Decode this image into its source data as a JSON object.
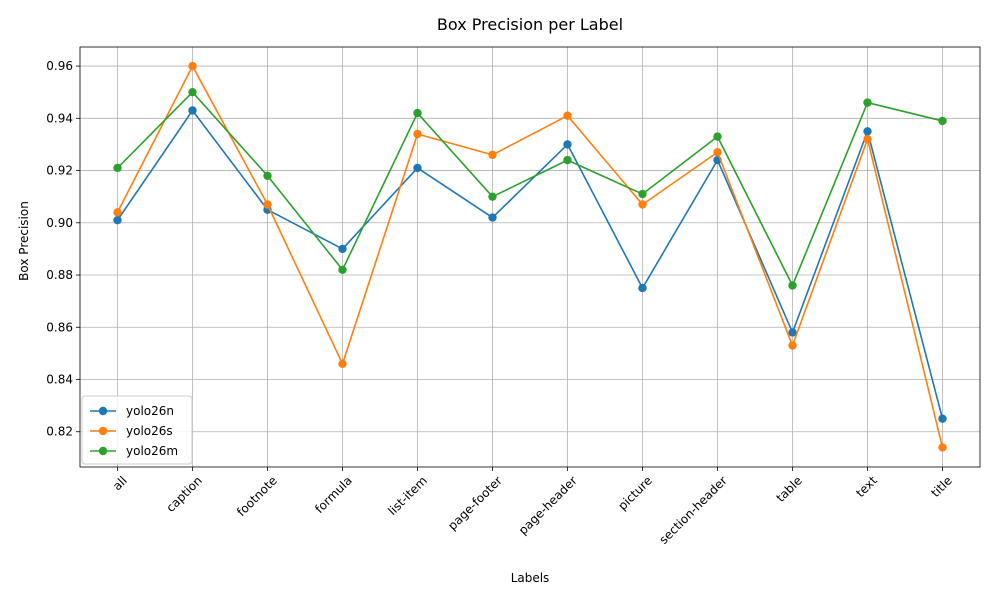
{
  "chart_data": {
    "type": "line",
    "title": "Box Precision per Label",
    "xlabel": "Labels",
    "ylabel": "Box Precision",
    "categories": [
      "all",
      "caption",
      "footnote",
      "formula",
      "list-item",
      "page-footer",
      "page-header",
      "picture",
      "section-header",
      "table",
      "text",
      "title"
    ],
    "ylim": [
      0.8065,
      0.9673
    ],
    "yticks": [
      "0.82",
      "0.84",
      "0.86",
      "0.88",
      "0.90",
      "0.92",
      "0.94",
      "0.96"
    ],
    "grid": true,
    "legend_position": "lower-left",
    "series": [
      {
        "name": "yolo26n",
        "color": "#1f77b4",
        "values": [
          0.901,
          0.943,
          0.905,
          0.89,
          0.921,
          0.902,
          0.93,
          0.875,
          0.924,
          0.858,
          0.935,
          0.825
        ]
      },
      {
        "name": "yolo26s",
        "color": "#ff7f0e",
        "values": [
          0.904,
          0.96,
          0.907,
          0.846,
          0.934,
          0.926,
          0.941,
          0.907,
          0.927,
          0.853,
          0.932,
          0.814
        ]
      },
      {
        "name": "yolo26m",
        "color": "#2ca02c",
        "values": [
          0.921,
          0.95,
          0.918,
          0.882,
          0.942,
          0.91,
          0.924,
          0.911,
          0.933,
          0.876,
          0.946,
          0.939
        ]
      }
    ]
  }
}
